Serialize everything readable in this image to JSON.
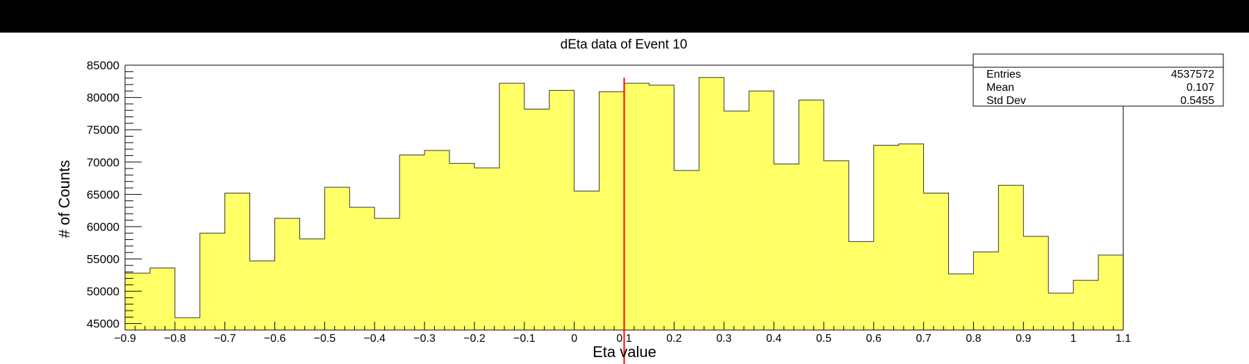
{
  "chart_data": {
    "type": "bar",
    "title": "dEta data of Event 10",
    "xlabel": "Eta value",
    "ylabel": "# of Counts",
    "xlim": [
      -0.9,
      1.1
    ],
    "ylim": [
      44000,
      85000
    ],
    "bin_width": 0.05,
    "x_ticks": [
      -0.9,
      -0.8,
      -0.7,
      -0.6,
      -0.5,
      -0.4,
      -0.3,
      -0.2,
      -0.1,
      0,
      0.1,
      0.2,
      0.3,
      0.4,
      0.5,
      0.6,
      0.7,
      0.8,
      0.9,
      1,
      1.1
    ],
    "x_tick_labels": [
      "−0.9",
      "−0.8",
      "−0.7",
      "−0.6",
      "−0.5",
      "−0.4",
      "−0.3",
      "−0.2",
      "−0.1",
      "0",
      "0.1",
      "0.2",
      "0.3",
      "0.4",
      "0.5",
      "0.6",
      "0.7",
      "0.8",
      "0.9",
      "1",
      "1.1"
    ],
    "y_ticks": [
      45000,
      50000,
      55000,
      60000,
      65000,
      70000,
      75000,
      80000,
      85000
    ],
    "y_tick_labels": [
      "45000",
      "50000",
      "55000",
      "60000",
      "65000",
      "70000",
      "75000",
      "80000",
      "85000"
    ],
    "bin_edges_start": -0.9,
    "values": [
      52800,
      53600,
      45900,
      59000,
      65200,
      54700,
      61300,
      58100,
      66100,
      63000,
      61300,
      71100,
      71800,
      69800,
      69100,
      82200,
      78200,
      81100,
      65500,
      80900,
      82200,
      81900,
      68700,
      83100,
      77900,
      81000,
      69700,
      79600,
      70200,
      57700,
      72600,
      72800,
      65200,
      52700,
      56100,
      66400,
      58500,
      49700,
      51700,
      55600
    ],
    "fill_color": "#ffff66",
    "line_color": "#333333",
    "marker_line": {
      "x": 0.1,
      "color": "#ff0000"
    },
    "grid": false,
    "legend": "none",
    "stats_box": {
      "placement": "top-right",
      "rows": [
        {
          "label": "Entries",
          "value": "4537572"
        },
        {
          "label": "Mean",
          "value": "0.107"
        },
        {
          "label": "Std Dev",
          "value": "0.5455"
        }
      ]
    }
  }
}
